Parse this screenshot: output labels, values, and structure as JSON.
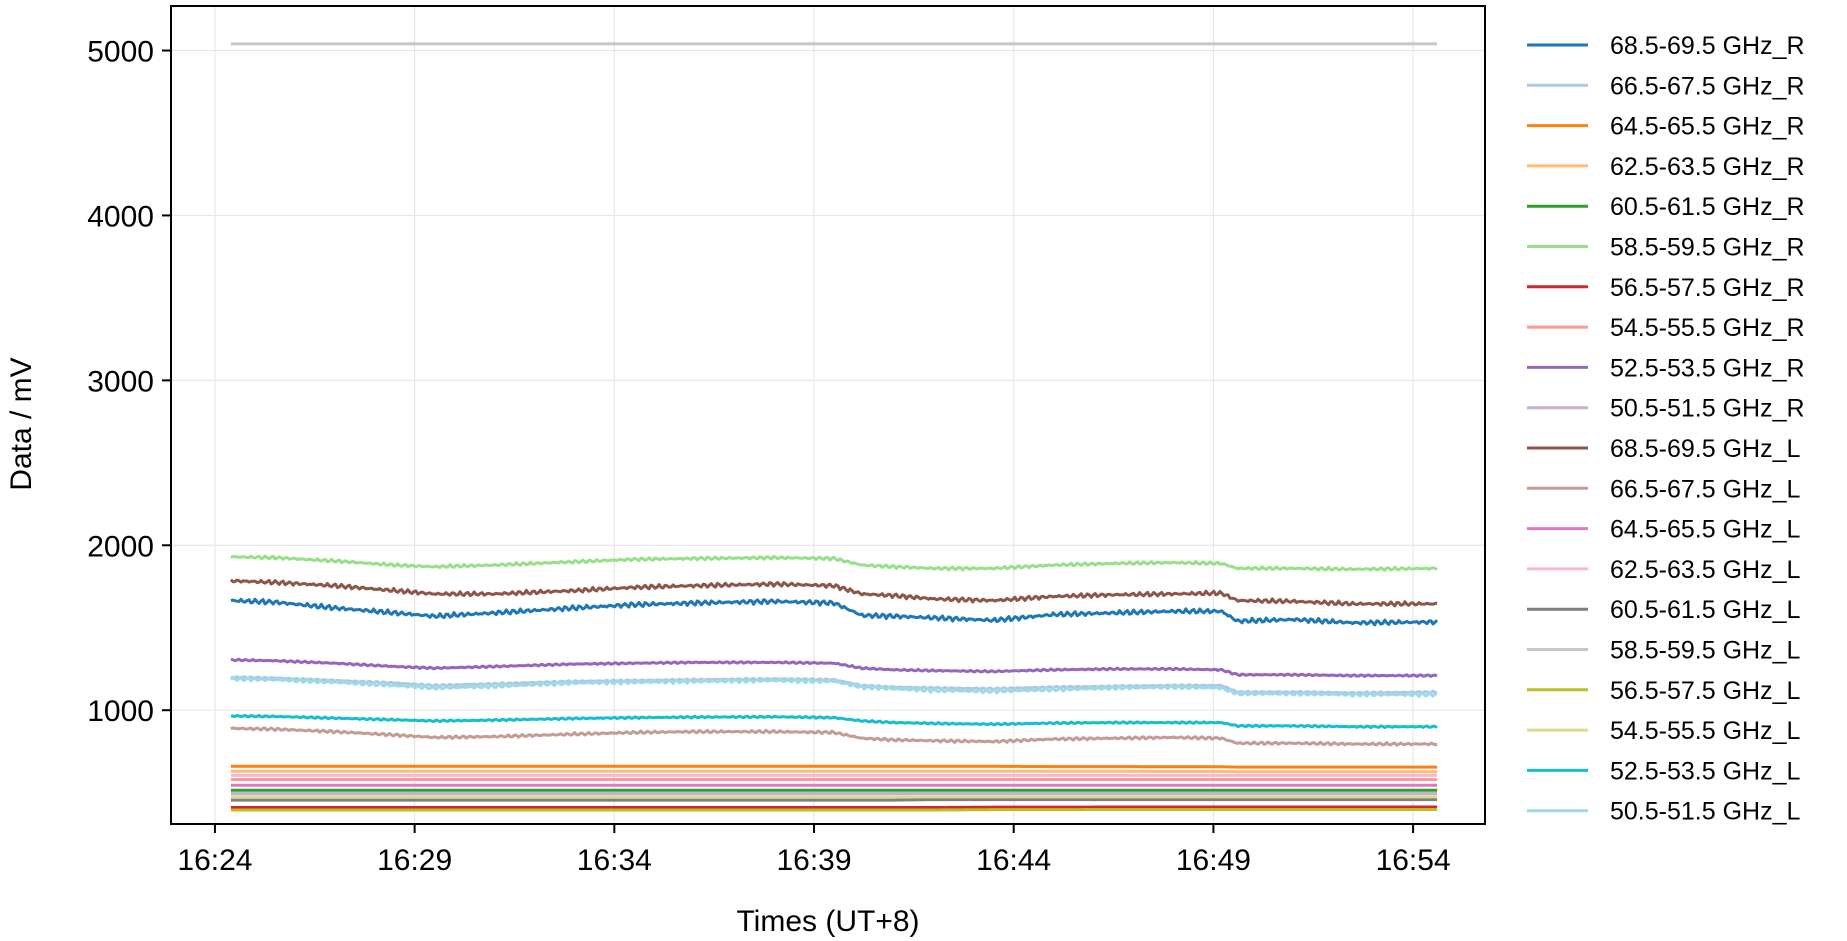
{
  "chart_data": {
    "type": "line",
    "title": "",
    "xlabel": "Times (UT+8)",
    "ylabel": "Data / mV",
    "x_ticks": [
      "16:24",
      "16:29",
      "16:34",
      "16:39",
      "16:44",
      "16:49",
      "16:54"
    ],
    "x_tick_minutes": [
      0,
      5,
      10,
      15,
      20,
      25,
      30
    ],
    "y_ticks": [
      "1000",
      "2000",
      "3000",
      "4000",
      "5000"
    ],
    "y_tick_values": [
      1000,
      2000,
      3000,
      4000,
      5000
    ],
    "xlim_minutes_from_16_24": [
      -1.1,
      31.8
    ],
    "x_data_range_minutes_from_16_24": [
      0.4,
      30.6
    ],
    "ylim": [
      310,
      5270
    ],
    "grid": true,
    "legend_placement": "outside-right",
    "x_samples_minutes_from_16_24": [
      0.4,
      1.5,
      3,
      4.5,
      5.5,
      7,
      9,
      10.5,
      12,
      14,
      15.5,
      16.2,
      17,
      18,
      19.5,
      21,
      22.5,
      24,
      25.2,
      25.6,
      27,
      28.5,
      30.6
    ],
    "series": [
      {
        "name": "68.5-69.5 GHz_R",
        "color": "#1f77b4",
        "noise": 16,
        "values": [
          1665,
          1655,
          1620,
          1590,
          1570,
          1590,
          1620,
          1640,
          1650,
          1660,
          1650,
          1575,
          1570,
          1560,
          1545,
          1580,
          1590,
          1600,
          1600,
          1540,
          1550,
          1530,
          1535
        ]
      },
      {
        "name": "66.5-67.5 GHz_R",
        "color": "#aec7e8",
        "noise": 6,
        "values": [
          1200,
          1195,
          1180,
          1165,
          1150,
          1160,
          1175,
          1180,
          1185,
          1190,
          1185,
          1150,
          1140,
          1135,
          1130,
          1140,
          1145,
          1150,
          1150,
          1110,
          1110,
          1105,
          1110
        ]
      },
      {
        "name": "64.5-65.5 GHz_R",
        "color": "#ff7f0e",
        "noise": 0,
        "values": [
          660,
          660,
          660,
          660,
          660,
          660,
          660,
          660,
          660,
          660,
          660,
          660,
          660,
          660,
          660,
          658,
          658,
          657,
          657,
          655,
          655,
          655,
          655
        ]
      },
      {
        "name": "62.5-63.5 GHz_R",
        "color": "#ffbb78",
        "noise": 0,
        "values": [
          630,
          630,
          630,
          630,
          630,
          630,
          630,
          630,
          630,
          630,
          630,
          630,
          630,
          630,
          630,
          630,
          630,
          628,
          628,
          627,
          627,
          627,
          627
        ]
      },
      {
        "name": "60.5-61.5 GHz_R",
        "color": "#2ca02c",
        "noise": 0,
        "values": [
          515,
          515,
          515,
          515,
          515,
          515,
          515,
          515,
          515,
          515,
          515,
          515,
          515,
          515,
          515,
          515,
          515,
          515,
          515,
          515,
          515,
          515,
          515
        ]
      },
      {
        "name": "58.5-59.5 GHz_R",
        "color": "#98df8a",
        "noise": 10,
        "values": [
          1930,
          1925,
          1905,
          1880,
          1870,
          1880,
          1900,
          1915,
          1920,
          1925,
          1920,
          1880,
          1870,
          1860,
          1860,
          1880,
          1890,
          1895,
          1890,
          1860,
          1860,
          1855,
          1860
        ]
      },
      {
        "name": "56.5-57.5 GHz_R",
        "color": "#d62728",
        "noise": 0,
        "values": [
          410,
          410,
          410,
          410,
          410,
          410,
          410,
          410,
          410,
          410,
          410,
          410,
          410,
          410,
          412,
          412,
          413,
          413,
          413,
          413,
          413,
          413,
          413
        ]
      },
      {
        "name": "54.5-55.5 GHz_R",
        "color": "#ff9896",
        "noise": 0,
        "values": [
          580,
          580,
          580,
          580,
          580,
          580,
          580,
          580,
          580,
          580,
          580,
          580,
          580,
          580,
          580,
          580,
          580,
          580,
          580,
          580,
          580,
          580,
          580
        ]
      },
      {
        "name": "52.5-53.5 GHz_R",
        "color": "#9467bd",
        "noise": 6,
        "values": [
          1305,
          1300,
          1285,
          1265,
          1255,
          1265,
          1280,
          1285,
          1290,
          1290,
          1285,
          1255,
          1245,
          1240,
          1235,
          1245,
          1250,
          1250,
          1245,
          1215,
          1215,
          1210,
          1210
        ]
      },
      {
        "name": "50.5-51.5 GHz_R",
        "color": "#c5b0d5",
        "noise": 0,
        "values": [
          495,
          495,
          495,
          495,
          495,
          495,
          495,
          495,
          495,
          495,
          495,
          495,
          495,
          495,
          495,
          495,
          495,
          495,
          495,
          495,
          495,
          495,
          495
        ]
      },
      {
        "name": "68.5-69.5 GHz_L",
        "color": "#8c564b",
        "noise": 14,
        "values": [
          1785,
          1775,
          1755,
          1725,
          1705,
          1705,
          1725,
          1745,
          1755,
          1765,
          1755,
          1705,
          1695,
          1675,
          1665,
          1690,
          1700,
          1705,
          1710,
          1665,
          1660,
          1645,
          1645
        ]
      },
      {
        "name": "66.5-67.5 GHz_L",
        "color": "#c49c94",
        "noise": 9,
        "values": [
          890,
          885,
          870,
          850,
          835,
          840,
          855,
          865,
          870,
          870,
          865,
          830,
          820,
          815,
          810,
          825,
          830,
          835,
          830,
          800,
          800,
          795,
          795
        ]
      },
      {
        "name": "64.5-65.5 GHz_L",
        "color": "#e377c2",
        "noise": 0,
        "values": [
          545,
          545,
          545,
          545,
          545,
          545,
          545,
          545,
          545,
          545,
          545,
          545,
          545,
          545,
          545,
          545,
          545,
          545,
          545,
          545,
          545,
          545,
          545
        ]
      },
      {
        "name": "62.5-63.5 GHz_L",
        "color": "#f7b6d2",
        "noise": 0,
        "values": [
          605,
          605,
          605,
          605,
          605,
          605,
          605,
          605,
          605,
          605,
          605,
          605,
          605,
          605,
          605,
          605,
          605,
          605,
          605,
          605,
          605,
          605,
          605
        ]
      },
      {
        "name": "60.5-61.5 GHz_L",
        "color": "#7f7f7f",
        "noise": 0,
        "values": [
          455,
          455,
          455,
          455,
          455,
          455,
          455,
          455,
          455,
          455,
          455,
          455,
          455,
          458,
          458,
          458,
          458,
          458,
          458,
          458,
          458,
          458,
          458
        ]
      },
      {
        "name": "58.5-59.5 GHz_L",
        "color": "#c7c7c7",
        "noise": 0,
        "values": [
          5040,
          5040,
          5040,
          5040,
          5040,
          5040,
          5040,
          5040,
          5040,
          5040,
          5040,
          5040,
          5040,
          5040,
          5040,
          5040,
          5040,
          5040,
          5040,
          5040,
          5040,
          5040,
          5040
        ]
      },
      {
        "name": "56.5-57.5 GHz_L",
        "color": "#bcbd22",
        "noise": 0,
        "values": [
          395,
          395,
          395,
          395,
          395,
          395,
          395,
          395,
          395,
          395,
          395,
          395,
          395,
          395,
          397,
          397,
          398,
          398,
          398,
          398,
          398,
          398,
          398
        ]
      },
      {
        "name": "54.5-55.5 GHz_L",
        "color": "#dbdb8d",
        "noise": 0,
        "values": [
          475,
          475,
          475,
          475,
          475,
          475,
          475,
          475,
          475,
          475,
          475,
          475,
          475,
          475,
          475,
          475,
          475,
          475,
          475,
          475,
          475,
          475,
          475
        ]
      },
      {
        "name": "52.5-53.5 GHz_L",
        "color": "#17becf",
        "noise": 6,
        "values": [
          965,
          962,
          952,
          942,
          935,
          940,
          950,
          955,
          958,
          960,
          955,
          935,
          925,
          920,
          915,
          922,
          925,
          925,
          925,
          905,
          905,
          900,
          900
        ]
      },
      {
        "name": "50.5-51.5 GHz_L",
        "color": "#9edae5",
        "noise": 12,
        "values": [
          1190,
          1185,
          1170,
          1150,
          1135,
          1145,
          1165,
          1170,
          1175,
          1180,
          1175,
          1140,
          1130,
          1120,
          1115,
          1125,
          1135,
          1140,
          1135,
          1100,
          1100,
          1095,
          1095
        ]
      }
    ]
  }
}
